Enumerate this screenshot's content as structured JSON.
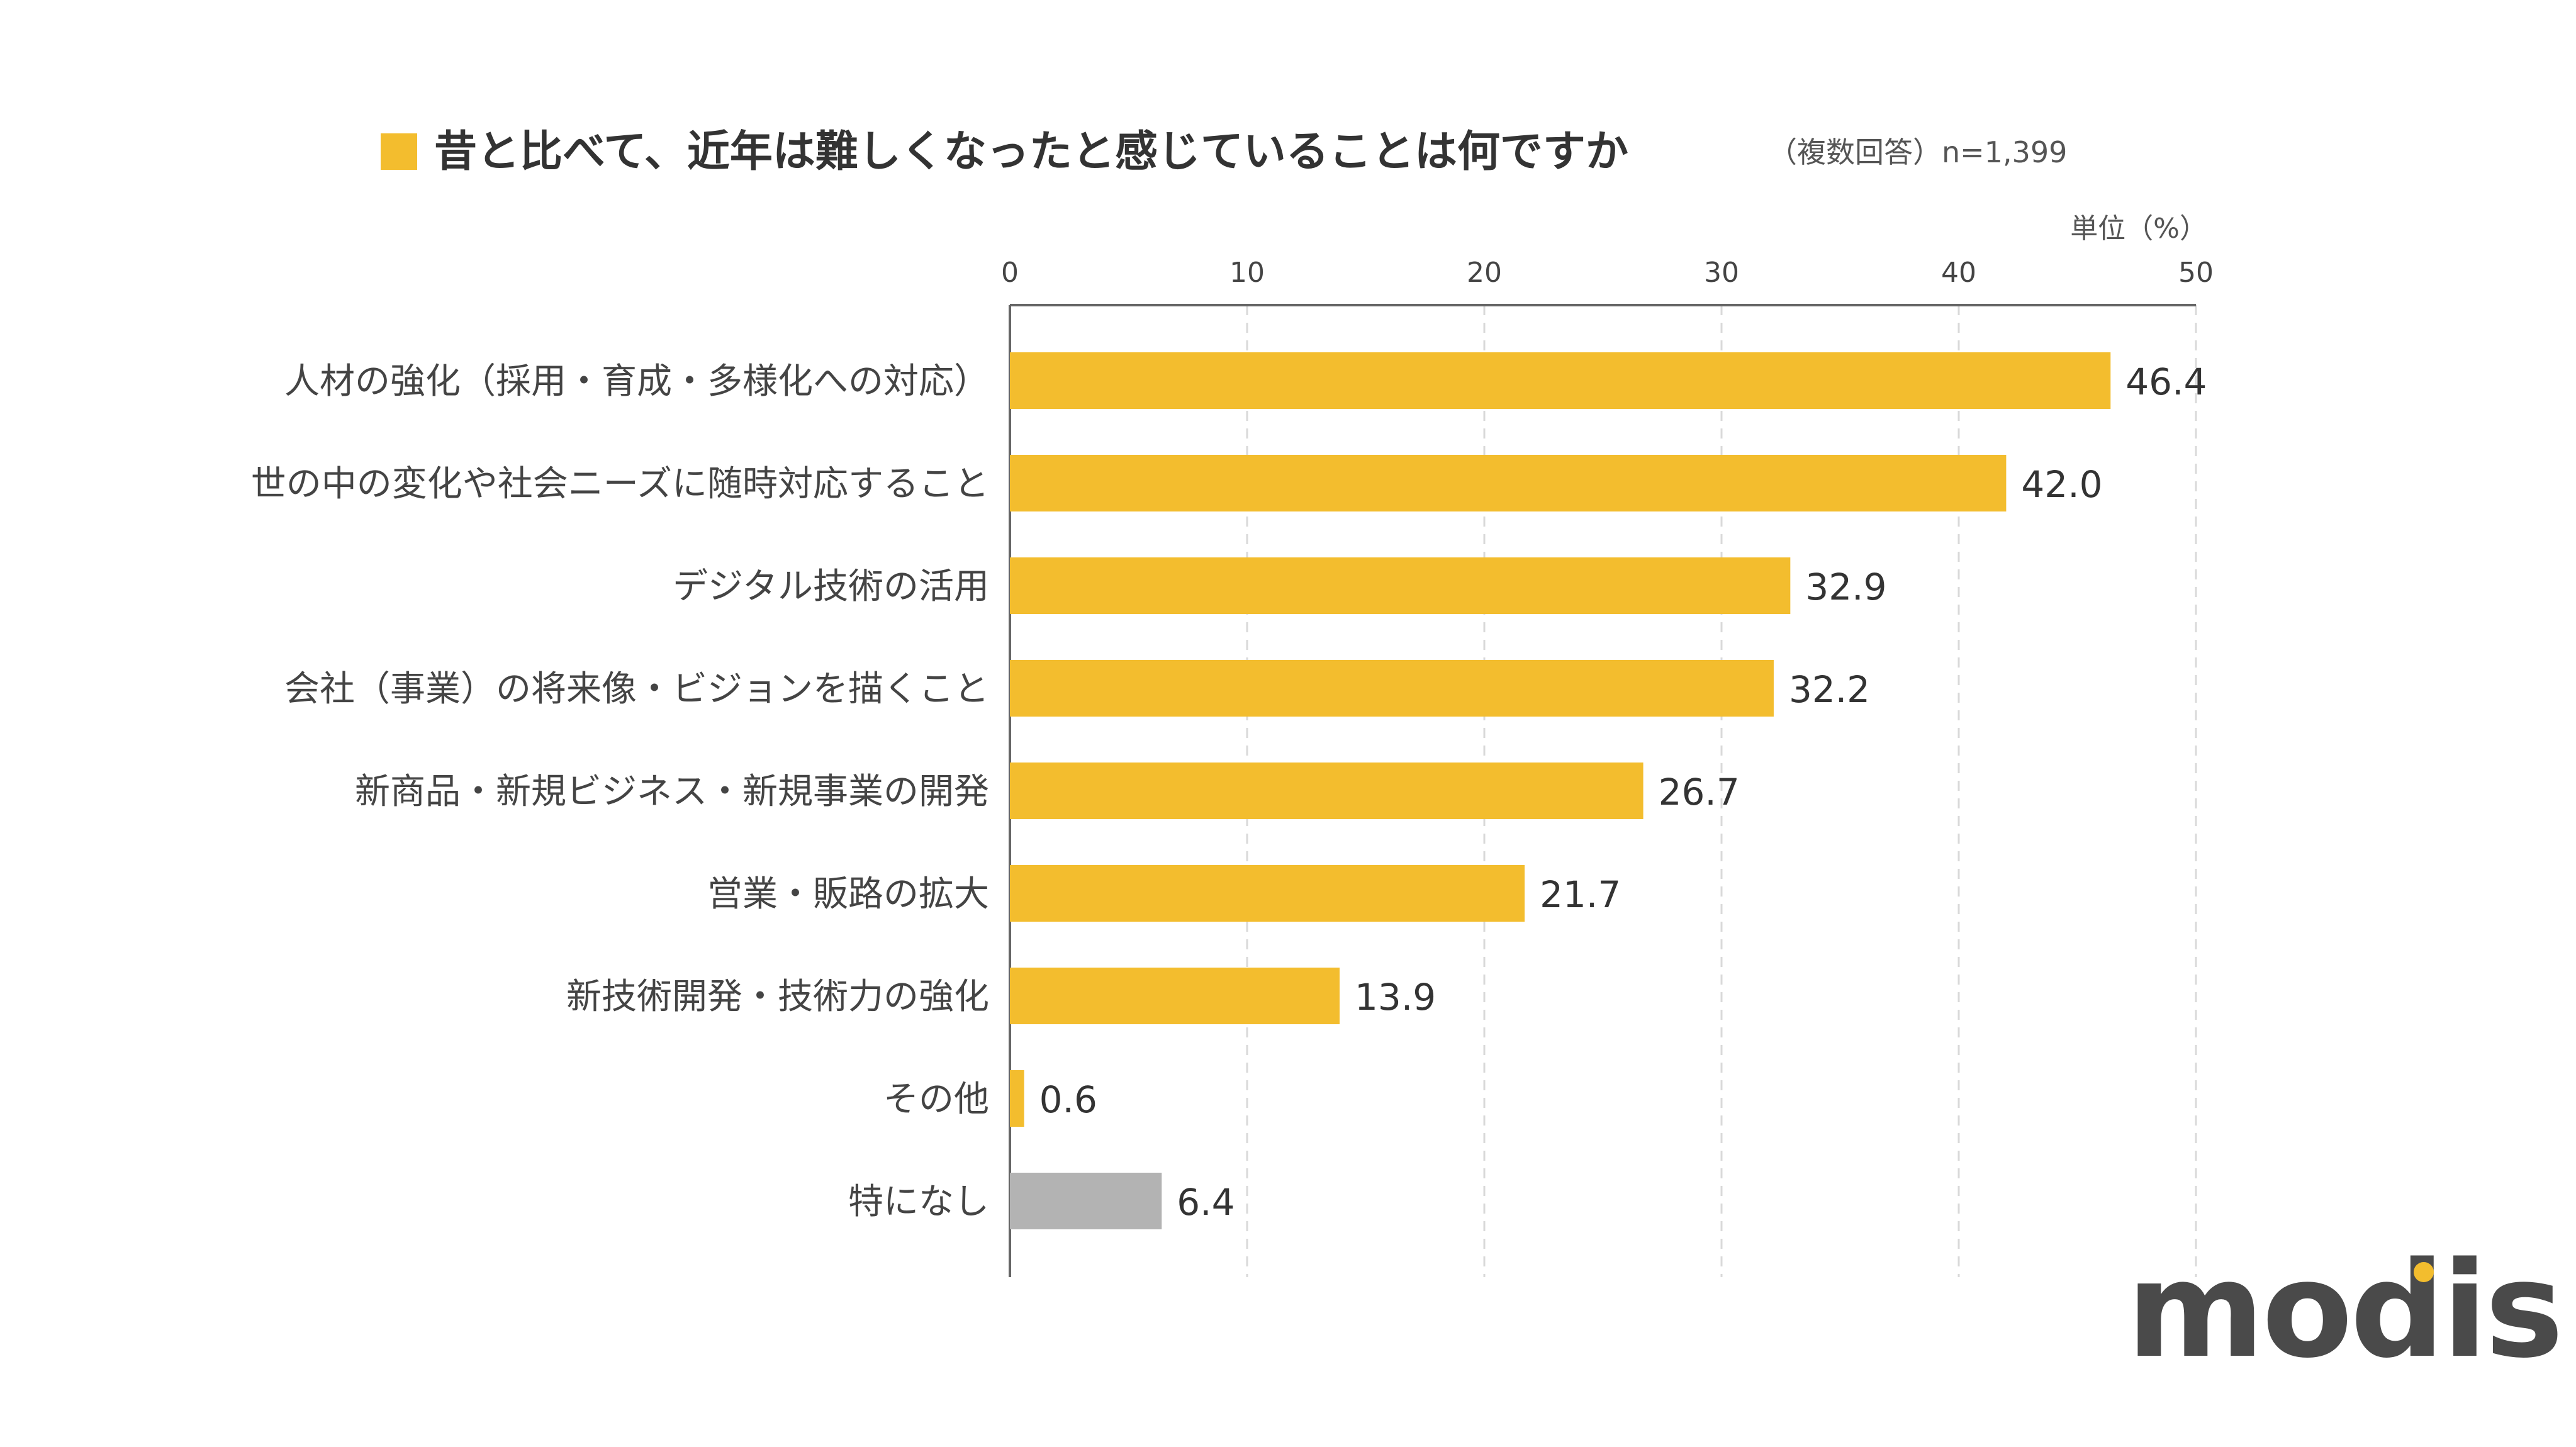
{
  "header": {
    "title": "昔と比べて、近年は難しくなったと感じていることは何ですか",
    "note": "（複数回答）n=1,399",
    "unit": "単位（%）"
  },
  "brand": {
    "logo_text": "modis"
  },
  "colors": {
    "bar": "#F3BD2E",
    "bar_muted": "#B3B3B3",
    "accent": "#F3BD2E",
    "logo": "#4A4A4A"
  },
  "chart_data": {
    "type": "bar",
    "orientation": "horizontal",
    "title": "昔と比べて、近年は難しくなったと感じていることは何ですか",
    "subtitle": "（複数回答）n=1,399",
    "xlabel": "単位（%）",
    "ylabel": "",
    "xlim": [
      0,
      50
    ],
    "ticks": [
      0,
      10,
      20,
      30,
      40,
      50
    ],
    "tick_labels": [
      "0",
      "10",
      "20",
      "30",
      "40",
      "50"
    ],
    "grid": true,
    "categories": [
      "人材の強化（採用・育成・多様化への対応）",
      "世の中の変化や社会ニーズに随時対応すること",
      "デジタル技術の活用",
      "会社（事業）の将来像・ビジョンを描くこと",
      "新商品・新規ビジネス・新規事業の開発",
      "営業・販路の拡大",
      "新技術開発・技術力の強化",
      "その他",
      "特になし"
    ],
    "values": [
      46.4,
      42.0,
      32.9,
      32.2,
      26.7,
      21.7,
      13.9,
      0.6,
      6.4
    ],
    "value_labels": [
      "46.4",
      "42.0",
      "32.9",
      "32.2",
      "26.7",
      "21.7",
      "13.9",
      "0.6",
      "6.4"
    ],
    "bar_colors": [
      "#F3BD2E",
      "#F3BD2E",
      "#F3BD2E",
      "#F3BD2E",
      "#F3BD2E",
      "#F3BD2E",
      "#F3BD2E",
      "#F3BD2E",
      "#B3B3B3"
    ]
  }
}
